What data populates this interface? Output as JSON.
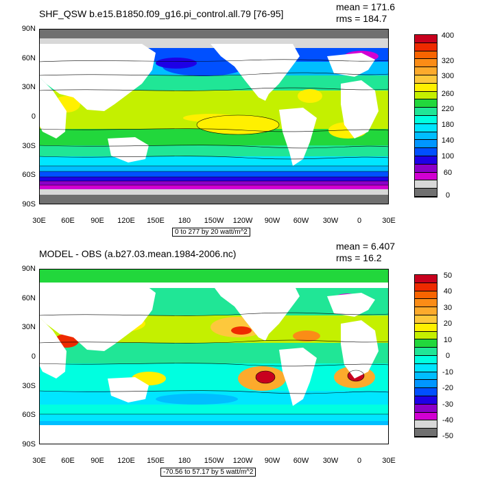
{
  "panels": [
    {
      "title": "SHF_QSW b.e15.B1850.f09_g16.pi_control.all.79 [76-95]",
      "mean": "mean = 171.6",
      "rms": "rms = 184.7",
      "lat_labels": [
        "90N",
        "60N",
        "30N",
        "0",
        "30S",
        "60S",
        "90S"
      ],
      "lon_labels": [
        "30E",
        "60E",
        "90E",
        "120E",
        "150E",
        "180",
        "150W",
        "120W",
        "90W",
        "60W",
        "30W",
        "0",
        "30E"
      ],
      "range": "0 to 277 by 20 watt/m^2",
      "colorbar_labels": [
        "400",
        "",
        "320",
        "300",
        "",
        "260",
        "",
        "220",
        "",
        "180",
        "",
        "140",
        "",
        "100",
        "",
        "60",
        "",
        "0"
      ],
      "colorbar_colors": [
        "#c8001e",
        "#ee2a00",
        "#f86400",
        "#fb8c16",
        "#fcaa2c",
        "#fdc83c",
        "#fff000",
        "#c4f000",
        "#22d73c",
        "#20e696",
        "#00ffe0",
        "#00e6ff",
        "#00beff",
        "#0096ff",
        "#0050ff",
        "#1e00e6",
        "#8c00c8",
        "#d200d2",
        "#d8d8d8",
        "#707070"
      ]
    },
    {
      "title": "MODEL - OBS (a.b27.03.mean.1984-2006.nc)",
      "mean": "mean = 6.407",
      "rms": "rms = 16.2",
      "lat_labels": [
        "90N",
        "60N",
        "30N",
        "0",
        "30S",
        "60S",
        "90S"
      ],
      "lon_labels": [
        "30E",
        "60E",
        "90E",
        "120E",
        "150E",
        "180",
        "150W",
        "120W",
        "90W",
        "60W",
        "30W",
        "0",
        "30E"
      ],
      "range": "-70.56 to 57.17 by 5 watt/m^2",
      "colorbar_labels": [
        "50",
        "40",
        "30",
        "20",
        "10",
        "0",
        "-10",
        "-20",
        "-30",
        "-40",
        "-50"
      ],
      "colorbar_colors": [
        "#c8001e",
        "#ee2a00",
        "#f86400",
        "#fb8c16",
        "#fcaa2c",
        "#fdc83c",
        "#fff000",
        "#c4f000",
        "#22d73c",
        "#20e696",
        "#00ffe0",
        "#00e6ff",
        "#00beff",
        "#0096ff",
        "#0050ff",
        "#1e00e6",
        "#8c00c8",
        "#d200d2",
        "#d8d8d8",
        "#707070"
      ]
    }
  ]
}
